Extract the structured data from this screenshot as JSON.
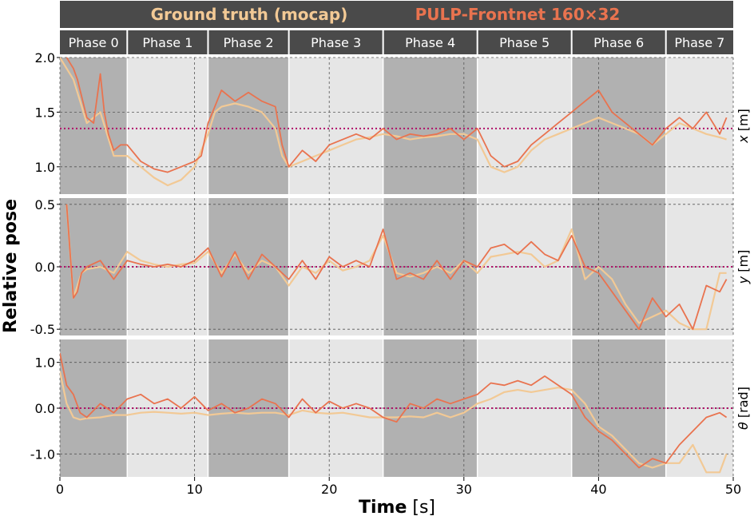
{
  "legend": {
    "ground_truth": "Ground truth (mocap)",
    "prediction": "PULP-Frontnet 160×32"
  },
  "colors": {
    "ground_truth": "#f2c995",
    "prediction": "#e9734f",
    "reference": "#b0136a",
    "phase_dark": "#b1b1b1",
    "phase_light": "#e6e6e6",
    "header": "#4a4a4a"
  },
  "axis": {
    "ylabel": "Relative pose",
    "xlabel_bold": "Time",
    "xlabel_unit": "[s]"
  },
  "chart_data": {
    "type": "line",
    "xlim": [
      0,
      50
    ],
    "xticks": [
      0,
      10,
      20,
      30,
      40,
      50
    ],
    "xtick_labels": [
      "0",
      "10",
      "20",
      "30",
      "40",
      "50"
    ],
    "phases": [
      {
        "label": "Phase 0",
        "start": 0,
        "end": 5,
        "shade": "dark"
      },
      {
        "label": "Phase 1",
        "start": 5,
        "end": 11,
        "shade": "light"
      },
      {
        "label": "Phase 2",
        "start": 11,
        "end": 17,
        "shade": "dark"
      },
      {
        "label": "Phase 3",
        "start": 17,
        "end": 24,
        "shade": "light"
      },
      {
        "label": "Phase 4",
        "start": 24,
        "end": 31,
        "shade": "dark"
      },
      {
        "label": "Phase 5",
        "start": 31,
        "end": 38,
        "shade": "light"
      },
      {
        "label": "Phase 6",
        "start": 38,
        "end": 45,
        "shade": "dark"
      },
      {
        "label": "Phase 7",
        "start": 45,
        "end": 50,
        "shade": "light"
      }
    ],
    "panels": [
      {
        "var": "x",
        "unit": "[m]",
        "ylim": [
          0.75,
          2.0
        ],
        "yticks": [
          1.0,
          1.5,
          2.0
        ],
        "ytick_labels": [
          "1.0",
          "1.5",
          "2.0"
        ],
        "reference": 1.35,
        "series": [
          {
            "name": "Ground truth (mocap)",
            "x": [
              0,
              0.5,
              1,
              1.5,
              2,
              2.5,
              3,
              3.5,
              4,
              5,
              6,
              7,
              8,
              9,
              10,
              11,
              11.5,
              12,
              13,
              14,
              15,
              16,
              16.5,
              17,
              18,
              19,
              20,
              21,
              22,
              23,
              24,
              25,
              26,
              27,
              28,
              29,
              30,
              31,
              32,
              33,
              34,
              35,
              36,
              37,
              38,
              39,
              40,
              41,
              42,
              43,
              44,
              45,
              46,
              47,
              48,
              49,
              49.5
            ],
            "y": [
              2.0,
              1.9,
              1.8,
              1.6,
              1.4,
              1.45,
              1.5,
              1.3,
              1.1,
              1.1,
              1.0,
              0.9,
              0.83,
              0.88,
              1.0,
              1.3,
              1.5,
              1.55,
              1.58,
              1.55,
              1.5,
              1.35,
              1.1,
              1.0,
              1.05,
              1.1,
              1.15,
              1.2,
              1.25,
              1.27,
              1.3,
              1.28,
              1.25,
              1.27,
              1.28,
              1.3,
              1.3,
              1.25,
              1.0,
              0.95,
              1.0,
              1.15,
              1.25,
              1.3,
              1.35,
              1.4,
              1.45,
              1.4,
              1.35,
              1.3,
              1.2,
              1.3,
              1.4,
              1.35,
              1.3,
              1.27,
              1.25
            ]
          },
          {
            "name": "PULP-Frontnet 160×32",
            "x": [
              0.5,
              1,
              1.3,
              1.6,
              2,
              2.5,
              3,
              3.3,
              3.6,
              4,
              4.5,
              5,
              6,
              7,
              8,
              9,
              10,
              10.5,
              11,
              11.5,
              12,
              13,
              14,
              15,
              16,
              16.5,
              17,
              18,
              19,
              20,
              21,
              22,
              23,
              24,
              25,
              26,
              27,
              28,
              29,
              30,
              31,
              32,
              33,
              34,
              35,
              36,
              37,
              38,
              39,
              40,
              41,
              42,
              43,
              44,
              45,
              46,
              47,
              48,
              49,
              49.5
            ],
            "y": [
              2.0,
              1.9,
              1.8,
              1.65,
              1.45,
              1.4,
              1.85,
              1.5,
              1.3,
              1.15,
              1.2,
              1.2,
              1.05,
              0.98,
              0.95,
              1.0,
              1.05,
              1.1,
              1.4,
              1.55,
              1.7,
              1.6,
              1.68,
              1.6,
              1.55,
              1.2,
              1.0,
              1.15,
              1.05,
              1.2,
              1.25,
              1.3,
              1.25,
              1.35,
              1.25,
              1.3,
              1.28,
              1.3,
              1.35,
              1.25,
              1.35,
              1.1,
              1.0,
              1.05,
              1.2,
              1.3,
              1.4,
              1.5,
              1.6,
              1.7,
              1.5,
              1.4,
              1.3,
              1.2,
              1.35,
              1.45,
              1.35,
              1.5,
              1.3,
              1.45
            ]
          }
        ]
      },
      {
        "var": "y",
        "unit": "[m]",
        "ylim": [
          -0.55,
          0.55
        ],
        "yticks": [
          -0.5,
          0.0,
          0.5
        ],
        "ytick_labels": [
          "-0.5",
          "0.0",
          "0.5"
        ],
        "reference": 0.0,
        "series": [
          {
            "name": "Ground truth (mocap)",
            "x": [
              0.5,
              1,
              1.3,
              1.6,
              2,
              3,
              4,
              5,
              6,
              7,
              8,
              9,
              10,
              11,
              12,
              13,
              14,
              15,
              16,
              17,
              18,
              19,
              20,
              21,
              22,
              23,
              24,
              25,
              26,
              27,
              28,
              29,
              30,
              31,
              32,
              33,
              34,
              35,
              36,
              37,
              38,
              39,
              40,
              41,
              42,
              43,
              44,
              45,
              46,
              47,
              48,
              49,
              49.5
            ],
            "y": [
              0.5,
              -0.25,
              -0.15,
              -0.05,
              -0.02,
              0.0,
              -0.05,
              0.12,
              0.05,
              0.02,
              0.0,
              0.02,
              0.03,
              0.12,
              -0.05,
              0.1,
              -0.05,
              0.05,
              0.0,
              -0.15,
              0.0,
              -0.05,
              0.05,
              -0.03,
              0.0,
              0.05,
              0.25,
              -0.05,
              -0.08,
              -0.05,
              0.0,
              -0.05,
              0.05,
              -0.05,
              0.08,
              0.1,
              0.12,
              0.1,
              0.0,
              0.05,
              0.3,
              -0.1,
              0.0,
              -0.1,
              -0.3,
              -0.45,
              -0.4,
              -0.35,
              -0.45,
              -0.5,
              -0.5,
              -0.05,
              -0.05
            ]
          },
          {
            "name": "PULP-Frontnet 160×32",
            "x": [
              0.5,
              1,
              1.3,
              1.6,
              2,
              3,
              4,
              5,
              6,
              7,
              8,
              9,
              10,
              11,
              12,
              13,
              14,
              15,
              16,
              17,
              18,
              19,
              20,
              21,
              22,
              23,
              24,
              25,
              26,
              27,
              28,
              29,
              30,
              31,
              32,
              33,
              34,
              35,
              36,
              37,
              38,
              39,
              40,
              41,
              42,
              43,
              44,
              45,
              46,
              47,
              48,
              49,
              49.5
            ],
            "y": [
              0.5,
              -0.25,
              -0.2,
              -0.05,
              0.0,
              0.05,
              -0.1,
              0.05,
              0.02,
              0.0,
              0.02,
              0.0,
              0.05,
              0.15,
              -0.08,
              0.12,
              -0.1,
              0.1,
              0.0,
              -0.1,
              0.05,
              -0.1,
              0.08,
              0.0,
              0.05,
              0.0,
              0.3,
              -0.1,
              -0.05,
              -0.1,
              0.05,
              -0.1,
              0.05,
              0.0,
              0.15,
              0.18,
              0.1,
              0.2,
              0.1,
              0.05,
              0.25,
              0.0,
              -0.05,
              -0.2,
              -0.35,
              -0.5,
              -0.25,
              -0.4,
              -0.3,
              -0.5,
              -0.15,
              -0.2,
              -0.1
            ]
          }
        ]
      },
      {
        "var": "θ",
        "unit": "[rad]",
        "ylim": [
          -1.5,
          1.5
        ],
        "yticks": [
          -1.0,
          0.0,
          1.0
        ],
        "ytick_labels": [
          "-1.0",
          "0.0",
          "1.0"
        ],
        "reference": 0.0,
        "series": [
          {
            "name": "Ground truth (mocap)",
            "x": [
              0,
              0.5,
              1,
              1.5,
              2,
              3,
              4,
              5,
              6,
              7,
              8,
              9,
              10,
              11,
              12,
              13,
              14,
              15,
              16,
              17,
              18,
              19,
              20,
              21,
              22,
              23,
              24,
              25,
              26,
              27,
              28,
              29,
              30,
              31,
              32,
              33,
              34,
              35,
              36,
              37,
              38,
              39,
              40,
              41,
              42,
              43,
              44,
              45,
              46,
              47,
              48,
              49,
              49.5
            ],
            "y": [
              0.8,
              0.1,
              -0.2,
              -0.25,
              -0.22,
              -0.2,
              -0.15,
              -0.15,
              -0.1,
              -0.08,
              -0.1,
              -0.12,
              -0.1,
              -0.15,
              -0.12,
              -0.1,
              -0.12,
              -0.1,
              -0.1,
              -0.15,
              -0.05,
              -0.1,
              -0.12,
              -0.1,
              -0.15,
              -0.2,
              -0.2,
              -0.2,
              -0.18,
              -0.2,
              -0.1,
              -0.2,
              -0.1,
              0.1,
              0.2,
              0.35,
              0.4,
              0.35,
              0.4,
              0.45,
              0.4,
              0.1,
              -0.4,
              -0.6,
              -0.9,
              -1.2,
              -1.3,
              -1.2,
              -1.2,
              -0.8,
              -1.4,
              -1.4,
              -1.0
            ]
          },
          {
            "name": "PULP-Frontnet 160×32",
            "x": [
              0,
              0.5,
              1,
              1.5,
              2,
              3,
              4,
              5,
              6,
              7,
              8,
              9,
              10,
              11,
              12,
              13,
              14,
              15,
              16,
              17,
              18,
              19,
              20,
              21,
              22,
              23,
              24,
              25,
              26,
              27,
              28,
              29,
              30,
              31,
              32,
              33,
              34,
              35,
              36,
              37,
              38,
              39,
              40,
              41,
              42,
              43,
              44,
              45,
              46,
              47,
              48,
              49,
              49.5
            ],
            "y": [
              1.2,
              0.5,
              0.3,
              -0.1,
              -0.2,
              0.1,
              -0.1,
              0.2,
              0.3,
              0.1,
              0.2,
              0.0,
              0.25,
              -0.05,
              0.1,
              -0.1,
              0.0,
              0.2,
              0.1,
              -0.2,
              0.2,
              -0.1,
              0.15,
              0.0,
              0.1,
              0.0,
              -0.2,
              -0.3,
              0.1,
              0.0,
              0.2,
              0.1,
              0.2,
              0.3,
              0.55,
              0.5,
              0.6,
              0.5,
              0.7,
              0.5,
              0.3,
              -0.2,
              -0.5,
              -0.7,
              -1.0,
              -1.3,
              -1.1,
              -1.2,
              -0.8,
              -0.5,
              -0.2,
              -0.1,
              -0.2
            ]
          }
        ]
      }
    ]
  }
}
